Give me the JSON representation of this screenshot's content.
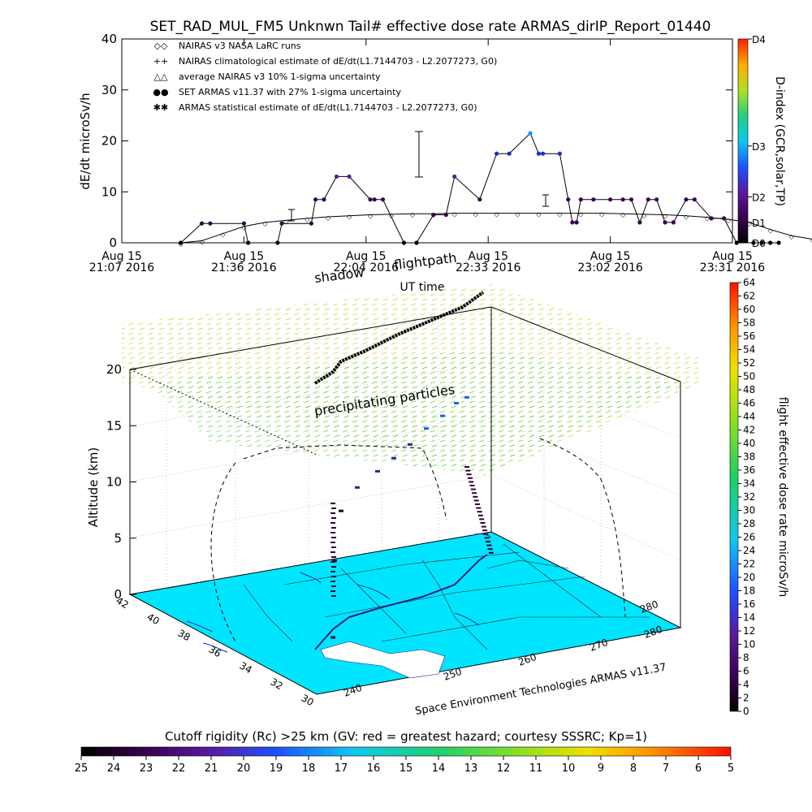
{
  "title": "SET_RAD_MUL_FM5 Unknwn Tail#  effective dose rate ARMAS_dirIP_Report_01440",
  "chart_data": [
    {
      "type": "line",
      "ylabel": "dE/dt microSv/h",
      "xlabel": "UT time",
      "ylim": [
        0,
        40
      ],
      "yticks": [
        "0",
        "10",
        "20",
        "30",
        "40"
      ],
      "xticks": [
        {
          "top": "Aug 15",
          "bottom": "21:07 2016"
        },
        {
          "top": "Aug 15",
          "bottom": "21:36 2016"
        },
        {
          "top": "Aug 15",
          "bottom": "22:04 2016"
        },
        {
          "top": "Aug 15",
          "bottom": "22:33 2016"
        },
        {
          "top": "Aug 15",
          "bottom": "23:02 2016"
        },
        {
          "top": "Aug 15",
          "bottom": "23:31 2016"
        }
      ],
      "xlim_minutes": [
        0,
        145
      ],
      "legend": [
        {
          "symbol": "◇",
          "label": "NAIRAS v3 NASA LaRC runs"
        },
        {
          "symbol": "+",
          "label": "NAIRAS climatological estimate of dE/dt(L1.7144703 - L2.2077273, G0)"
        },
        {
          "symbol": "△",
          "label": "average NAIRAS v3 10% 1-sigma uncertainty"
        },
        {
          "symbol": "●",
          "label": "SET ARMAS v11.37 with 27% 1-sigma uncertainty",
          "color": "#1030e0"
        },
        {
          "symbol": "✱",
          "label": "ARMAS statistical estimate of dE/dt(L1.7144703 - L2.2077273, G0)"
        }
      ],
      "dindex_axis": {
        "label": "D-index (GCR,solar,TP)",
        "ticks": [
          "D0",
          "D1",
          "D2",
          "D3",
          "D4"
        ],
        "tick_values": [
          0,
          4,
          9,
          19,
          40
        ]
      },
      "series": [
        {
          "name": "SET ARMAS v11.37 with 27% 1-sigma uncertainty",
          "x": [
            14,
            19,
            21,
            29,
            30,
            37,
            38,
            45,
            46,
            48,
            51,
            54,
            59,
            60,
            62,
            67,
            70,
            74,
            77,
            79,
            85,
            89,
            92,
            97,
            99,
            100,
            104,
            106,
            107,
            108,
            109,
            112,
            116,
            119,
            121,
            123,
            125,
            127,
            129,
            131,
            134,
            136,
            140,
            143,
            146,
            150,
            152,
            154,
            156
          ],
          "values": [
            0,
            3.8,
            3.8,
            3.8,
            0,
            0,
            3.8,
            3.8,
            8.5,
            8.5,
            13,
            13,
            8.5,
            8.5,
            8.5,
            0,
            0,
            5.5,
            5.5,
            13,
            8.5,
            17.5,
            17.5,
            21.5,
            17.5,
            17.5,
            17.5,
            8.5,
            4,
            4,
            8.5,
            8.5,
            8.5,
            8.5,
            8.5,
            4,
            8.5,
            8.5,
            4,
            4,
            8.5,
            8.5,
            4.8,
            4.8,
            0,
            0,
            0,
            0,
            0
          ]
        },
        {
          "name": "NAIRAS v3 NASA LaRC runs",
          "x": [
            14,
            19,
            24,
            29,
            34,
            39,
            44,
            49,
            54,
            59,
            64,
            69,
            74,
            79,
            84,
            89,
            94,
            99,
            104,
            109,
            114,
            119,
            124,
            129,
            134,
            139,
            144,
            149,
            154,
            159,
            164,
            169,
            174,
            179
          ],
          "values": [
            0,
            0.4,
            1.8,
            3.2,
            4.0,
            4.4,
            4.8,
            5.1,
            5.3,
            5.5,
            5.6,
            5.7,
            5.7,
            5.8,
            5.8,
            5.8,
            5.8,
            5.8,
            5.8,
            5.8,
            5.8,
            5.7,
            5.6,
            5.5,
            5.3,
            5.0,
            4.6,
            4.0,
            2.6,
            1.4,
            0.7,
            0.3,
            0.1,
            0
          ]
        }
      ]
    },
    {
      "type": "scatter",
      "zlabel": "Altitude (km)",
      "zlim": [
        0,
        20
      ],
      "zticks": [
        "0",
        "5",
        "10",
        "15",
        "20"
      ],
      "lat_ticks": [
        "42",
        "40",
        "38",
        "36",
        "34",
        "32",
        "30"
      ],
      "lon_ticks": [
        "240",
        "250",
        "260",
        "270",
        "280",
        "280"
      ],
      "annotations": [
        "shadow",
        "flightpath",
        "precipitating particles"
      ],
      "footer": "Space Environment Technologies ARMAS v11.37",
      "flight_path_altitude_km": [
        0,
        5,
        8,
        9,
        9.5,
        9.8,
        10.3,
        11,
        11.4,
        11.8,
        11.6
      ]
    },
    {
      "type": "heatmap",
      "label": "flight effective dose rate microSv/h",
      "min": 0,
      "max": 64,
      "ticks": [
        "0",
        "2",
        "4",
        "6",
        "8",
        "10",
        "12",
        "14",
        "16",
        "18",
        "20",
        "22",
        "24",
        "26",
        "28",
        "30",
        "32",
        "34",
        "36",
        "38",
        "40",
        "42",
        "44",
        "46",
        "48",
        "50",
        "52",
        "54",
        "56",
        "58",
        "60",
        "62",
        "64"
      ]
    },
    {
      "type": "heatmap",
      "title": "Cutoff rigidity (Rc) >25 km (GV: red = greatest hazard; courtesy SSSRC; Kp=1)",
      "ticks": [
        "25",
        "24",
        "23",
        "22",
        "21",
        "20",
        "19",
        "18",
        "17",
        "16",
        "15",
        "14",
        "13",
        "12",
        "11",
        "10",
        "9",
        "8",
        "7",
        "6",
        "5"
      ]
    }
  ]
}
